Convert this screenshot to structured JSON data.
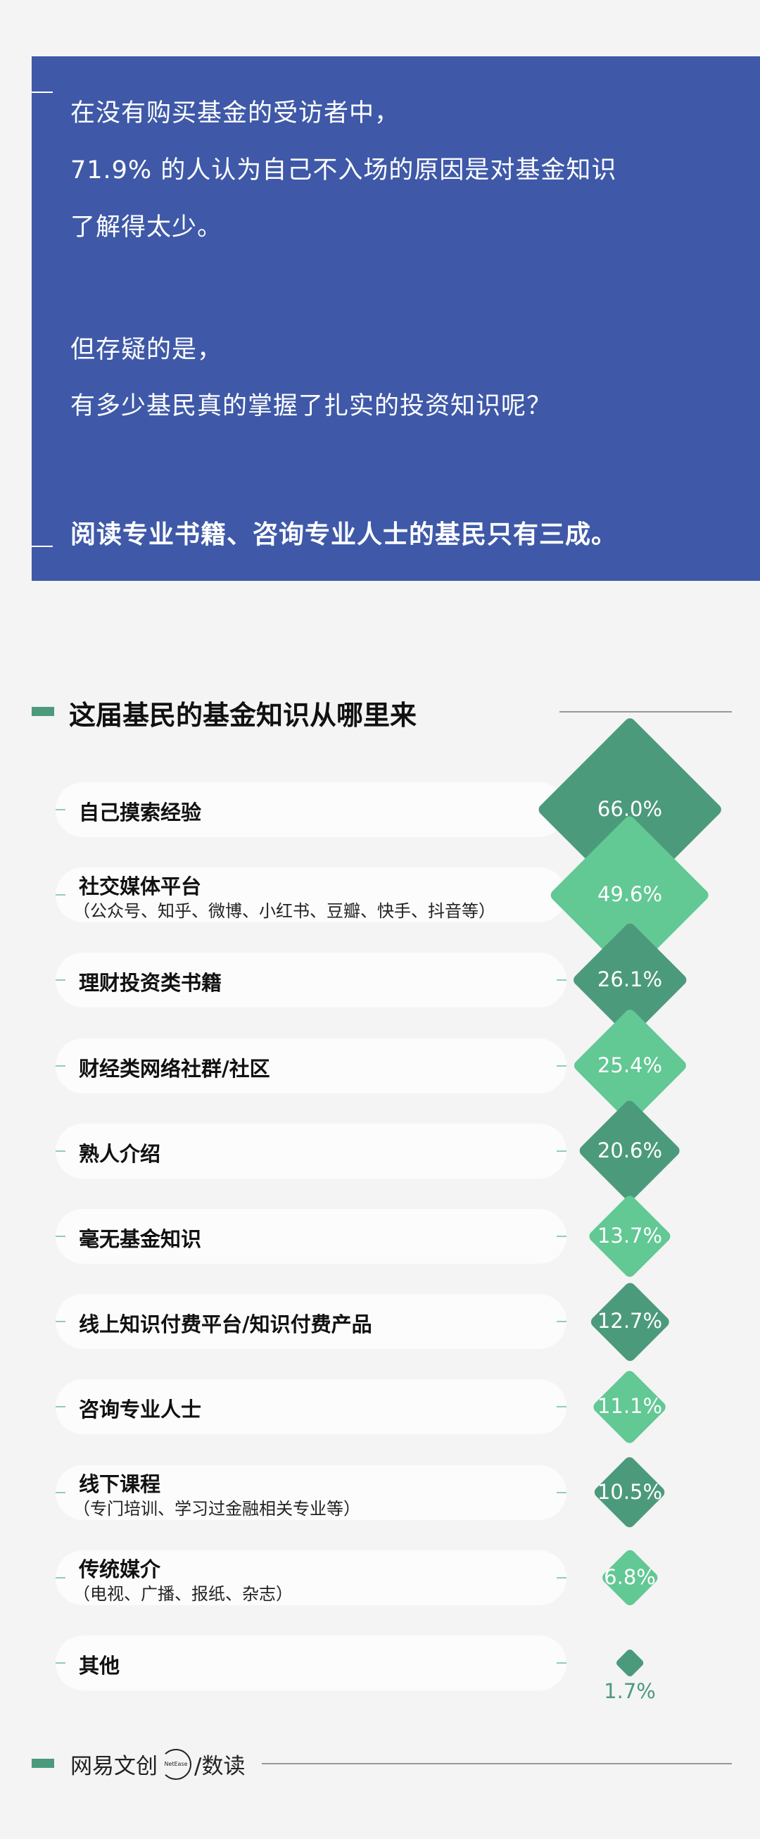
{
  "intro": {
    "lines": [
      "在没有购买基金的受访者中，",
      "71.9% 的人认为自己不入场的原因是对基金知识",
      "了解得太少。",
      "但存疑的是，",
      "有多少基民真的掌握了扎实的投资知识呢？"
    ],
    "highlight": "阅读专业书籍、咨询专业人士的基民只有三成。"
  },
  "chart_data": {
    "type": "diamond-bar",
    "title": "这届基民的基金知识从哪里来",
    "colors": {
      "dark": "#4c9a7c",
      "light": "#62c894"
    },
    "categories": [
      {
        "label": "自己摸索经验",
        "sub": "",
        "value": 66.0,
        "text": "66.0%"
      },
      {
        "label": "社交媒体平台",
        "sub": "（公众号、知乎、微博、小红书、豆瓣、快手、抖音等）",
        "value": 49.6,
        "text": "49.6%"
      },
      {
        "label": "理财投资类书籍",
        "sub": "",
        "value": 26.1,
        "text": "26.1%"
      },
      {
        "label": "财经类网络社群/社区",
        "sub": "",
        "value": 25.4,
        "text": "25.4%"
      },
      {
        "label": "熟人介绍",
        "sub": "",
        "value": 20.6,
        "text": "20.6%"
      },
      {
        "label": "毫无基金知识",
        "sub": "",
        "value": 13.7,
        "text": "13.7%"
      },
      {
        "label": "线上知识付费平台/知识付费产品",
        "sub": "",
        "value": 12.7,
        "text": "12.7%"
      },
      {
        "label": "咨询专业人士",
        "sub": "",
        "value": 11.1,
        "text": "11.1%"
      },
      {
        "label": "线下课程",
        "sub": "（专门培训、学习过金融相关专业等）",
        "value": 10.5,
        "text": "10.5%"
      },
      {
        "label": "传统媒介",
        "sub": "（电视、广播、报纸、杂志）",
        "value": 6.8,
        "text": "6.8%"
      },
      {
        "label": "其他",
        "sub": "",
        "value": 1.7,
        "text": "1.7%"
      }
    ]
  },
  "footer": {
    "brand": "网易文创",
    "logo_text": "NetEase",
    "section": "/数读"
  }
}
